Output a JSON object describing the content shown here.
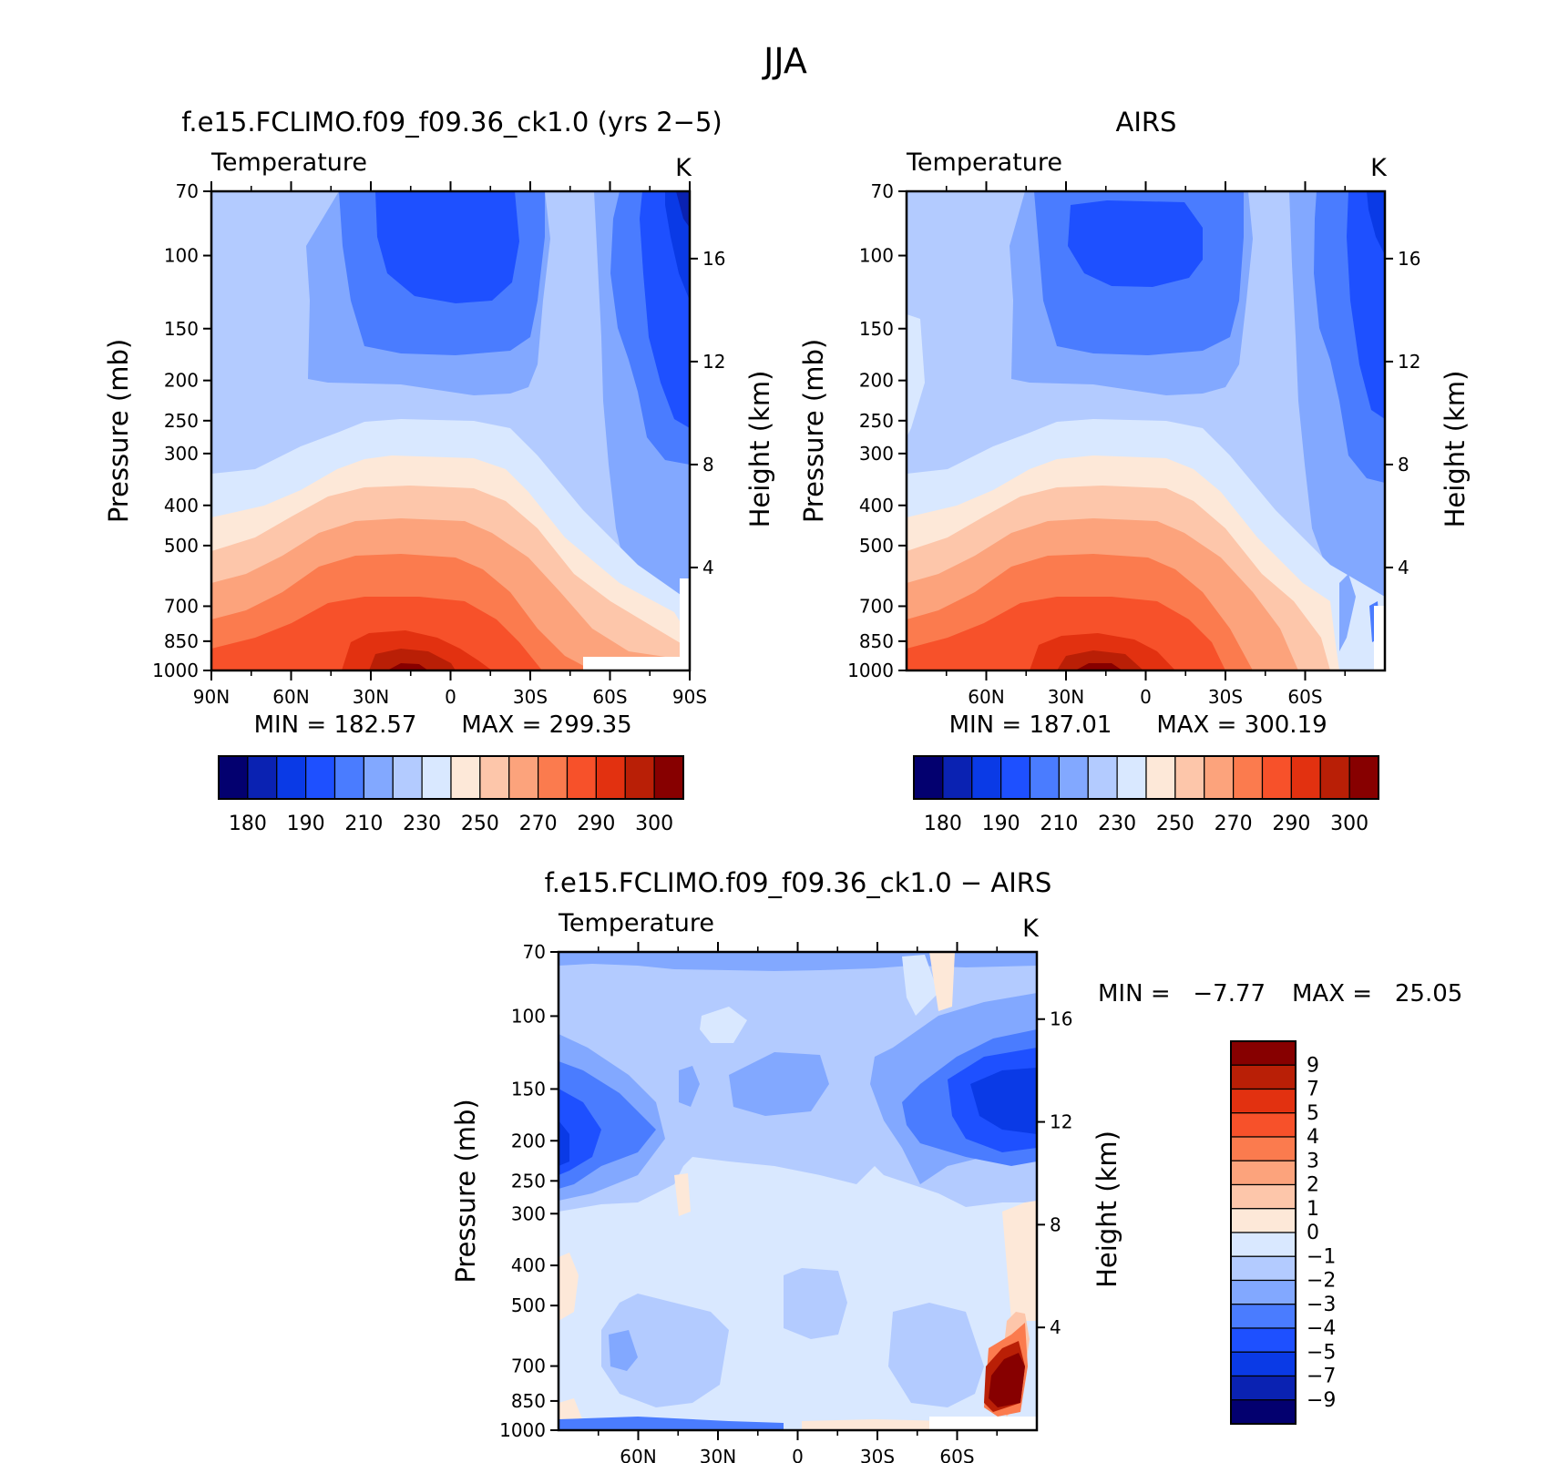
{
  "figure": {
    "title": "JJA"
  },
  "chart_data": [
    {
      "type": "heatmap",
      "title": "f.e15.FCLIMO.f09_f09.36_ck1.0 (yrs 2−5)",
      "left_string": "Temperature",
      "right_string": "K",
      "ylabel": "Pressure (mb)",
      "ylabel_right": "Height (km)",
      "x_ticks": [
        "90N",
        "60N",
        "30N",
        "0",
        "30S",
        "60S",
        "90S"
      ],
      "y_ticks": [
        "70",
        "100",
        "150",
        "200",
        "250",
        "300",
        "400",
        "500",
        "700",
        "850",
        "1000"
      ],
      "height_ticks": [
        "4",
        "8",
        "12",
        "16"
      ],
      "min_text": "MIN = 182.57",
      "max_text": "MAX = 299.35",
      "min": 182.57,
      "max": 299.35,
      "colorbar_labels": [
        "180",
        "190",
        "210",
        "230",
        "250",
        "270",
        "290",
        "300"
      ],
      "colorbar_colors": [
        "#03006f",
        "#0a22b2",
        "#0a3ae6",
        "#1e50ff",
        "#4a7cff",
        "#82a8ff",
        "#b3cbff",
        "#d9e8ff",
        "#fde8d8",
        "#fdc6aa",
        "#fca37c",
        "#fb7b4e",
        "#f7512a",
        "#e23110",
        "#b91f06",
        "#870000"
      ]
    },
    {
      "type": "heatmap",
      "title": "AIRS",
      "left_string": "Temperature",
      "right_string": "K",
      "ylabel": "Pressure (mb)",
      "ylabel_right": "Height (km)",
      "x_ticks": [
        "60N",
        "30N",
        "0",
        "30S",
        "60S"
      ],
      "y_ticks": [
        "70",
        "100",
        "150",
        "200",
        "250",
        "300",
        "400",
        "500",
        "700",
        "850",
        "1000"
      ],
      "height_ticks": [
        "4",
        "8",
        "12",
        "16"
      ],
      "min_text": "MIN = 187.01",
      "max_text": "MAX = 300.19",
      "min": 187.01,
      "max": 300.19,
      "colorbar_labels": [
        "180",
        "190",
        "210",
        "230",
        "250",
        "270",
        "290",
        "300"
      ],
      "colorbar_colors": [
        "#03006f",
        "#0a22b2",
        "#0a3ae6",
        "#1e50ff",
        "#4a7cff",
        "#82a8ff",
        "#b3cbff",
        "#d9e8ff",
        "#fde8d8",
        "#fdc6aa",
        "#fca37c",
        "#fb7b4e",
        "#f7512a",
        "#e23110",
        "#b91f06",
        "#870000"
      ]
    },
    {
      "type": "heatmap",
      "title": "f.e15.FCLIMO.f09_f09.36_ck1.0 − AIRS",
      "left_string": "Temperature",
      "right_string": "K",
      "ylabel": "Pressure (mb)",
      "ylabel_right": "Height (km)",
      "x_ticks": [
        "60N",
        "30N",
        "0",
        "30S",
        "60S"
      ],
      "y_ticks": [
        "70",
        "100",
        "150",
        "200",
        "250",
        "300",
        "400",
        "500",
        "700",
        "850",
        "1000"
      ],
      "height_ticks": [
        "4",
        "8",
        "12",
        "16"
      ],
      "min_text": "MIN =   −7.77",
      "max_text": "MAX =   25.05",
      "min": -7.77,
      "max": 25.05,
      "colorbar_labels": [
        "9",
        "7",
        "5",
        "4",
        "3",
        "2",
        "1",
        "0",
        "−1",
        "−2",
        "−3",
        "−4",
        "−5",
        "−7",
        "−9"
      ],
      "colorbar_colors": [
        "#870000",
        "#b91f06",
        "#e23110",
        "#f7512a",
        "#fb7b4e",
        "#fca37c",
        "#fdc6aa",
        "#fde8d8",
        "#d9e8ff",
        "#b3cbff",
        "#82a8ff",
        "#4a7cff",
        "#1e50ff",
        "#0a3ae6",
        "#0a22b2",
        "#03006f"
      ]
    }
  ]
}
